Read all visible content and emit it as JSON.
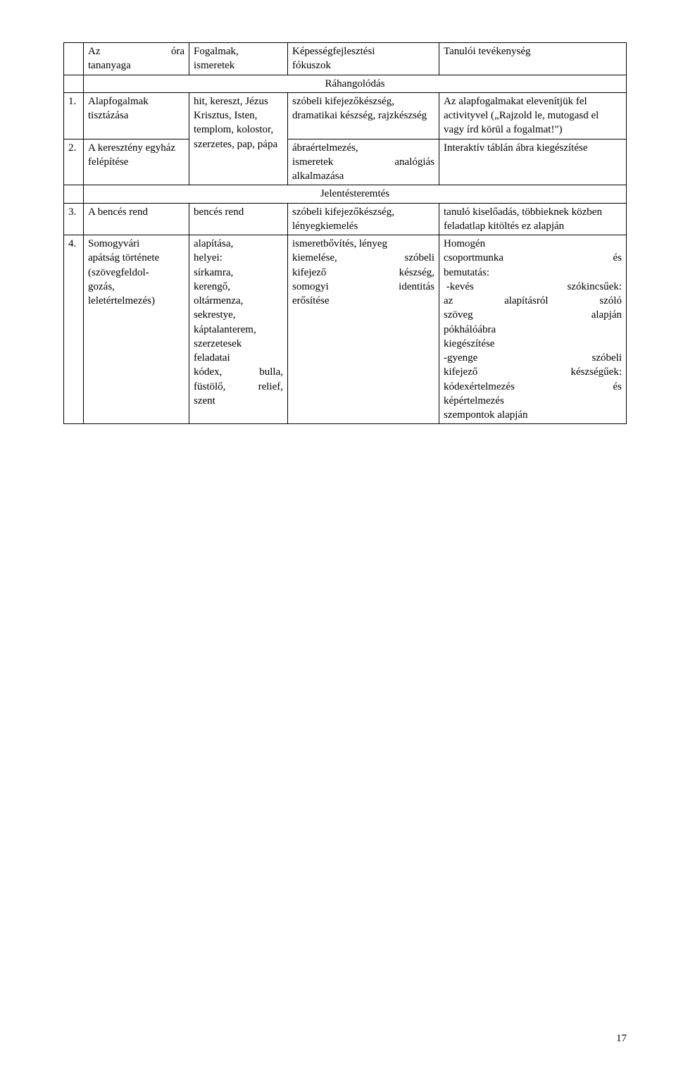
{
  "header": {
    "c1a": "Az",
    "c1b": "óra",
    "c1c": "tananyaga",
    "c2a": "Fogalmak,",
    "c2b": "ismeretek",
    "c3a": "Képességfejlesztési",
    "c3b": "fókuszok",
    "c4": "Tanulói tevékenység"
  },
  "section1": "Ráhangolódás",
  "rows": [
    {
      "n": "1.",
      "c1": "Alapfogalmak tisztázása",
      "c2": "hit, kereszt, Jézus Krisztus, Isten, templom, kolostor, szerzetes, pap, pápa",
      "c3": "szóbeli kifejezőkészség, dramatikai készség, rajzkészség",
      "c4": "Az alapfogalmakat elevenítjük fel activityvel („Rajzold le, mutogasd el vagy írd körül a fogalmat!\")"
    },
    {
      "n": "2.",
      "c1": "A keresztény egyház felépítése",
      "c3a": "ábraértelmezés,",
      "c3b_l": "ismeretek",
      "c3b_r": "analógiás",
      "c3c": "alkalmazása",
      "c4": "Interaktív táblán ábra kiegészítése"
    }
  ],
  "section2": "Jelentésteremtés",
  "rows2": [
    {
      "n": "3.",
      "c1": "A bencés rend",
      "c2": "bencés rend",
      "c3": "szóbeli kifejezőkészség, lényegkiemelés",
      "c4": "tanuló kiselőadás, többieknek közben feladatlap kitöltés ez alapján"
    },
    {
      "n": "4.",
      "c1a": "Somogyvári",
      "c1b": "apátság története",
      "c1c": "(szövegfeldol-",
      "c1d": "gozás,",
      "c1e": "leletértelmezés)",
      "c2a": "alapítása,",
      "c2b": "helyei:",
      "c2c": "sírkamra,",
      "c2d": "kerengő,",
      "c2e": "oltármenza,",
      "c2f": "sekrestye,",
      "c2g": "káptalanterem,",
      "c2h": "",
      "c2i": "szerzetesek",
      "c2j": "feladatai",
      "c2k_l": "kódex,",
      "c2k_r": "bulla,",
      "c2l_l": "füstölő,",
      "c2l_r": "relief,",
      "c2m": "szent",
      "c3a": "ismeretbővítés, lényeg",
      "c3b_l": "kiemelése,",
      "c3b_r": "szóbeli",
      "c3c_l": "kifejező",
      "c3c_r": "készség,",
      "c3d_l": "somogyi",
      "c3d_r": "identitás",
      "c3e": "erősítése",
      "c4a": "Homogén",
      "c4b_l": "csoportmunka",
      "c4b_r": "és",
      "c4c": "bemutatás:",
      "c4d_l": " -kevés",
      "c4d_r": "szókincsűek:",
      "c4e_l": "az",
      "c4e_m": "alapításról",
      "c4e_r": "szóló",
      "c4f_l": "szöveg",
      "c4f_r": "alapján",
      "c4g": "pókhálóábra",
      "c4h": "kiegészítése",
      "c4i_l": "-gyenge",
      "c4i_r": "szóbeli",
      "c4j_l": "kifejező",
      "c4j_r": "készségűek:",
      "c4k_l": "kódexértelmezés",
      "c4k_r": "és",
      "c4l": "képértelmezés",
      "c4m": "szempontok alapján"
    }
  ],
  "pageNumber": "17"
}
